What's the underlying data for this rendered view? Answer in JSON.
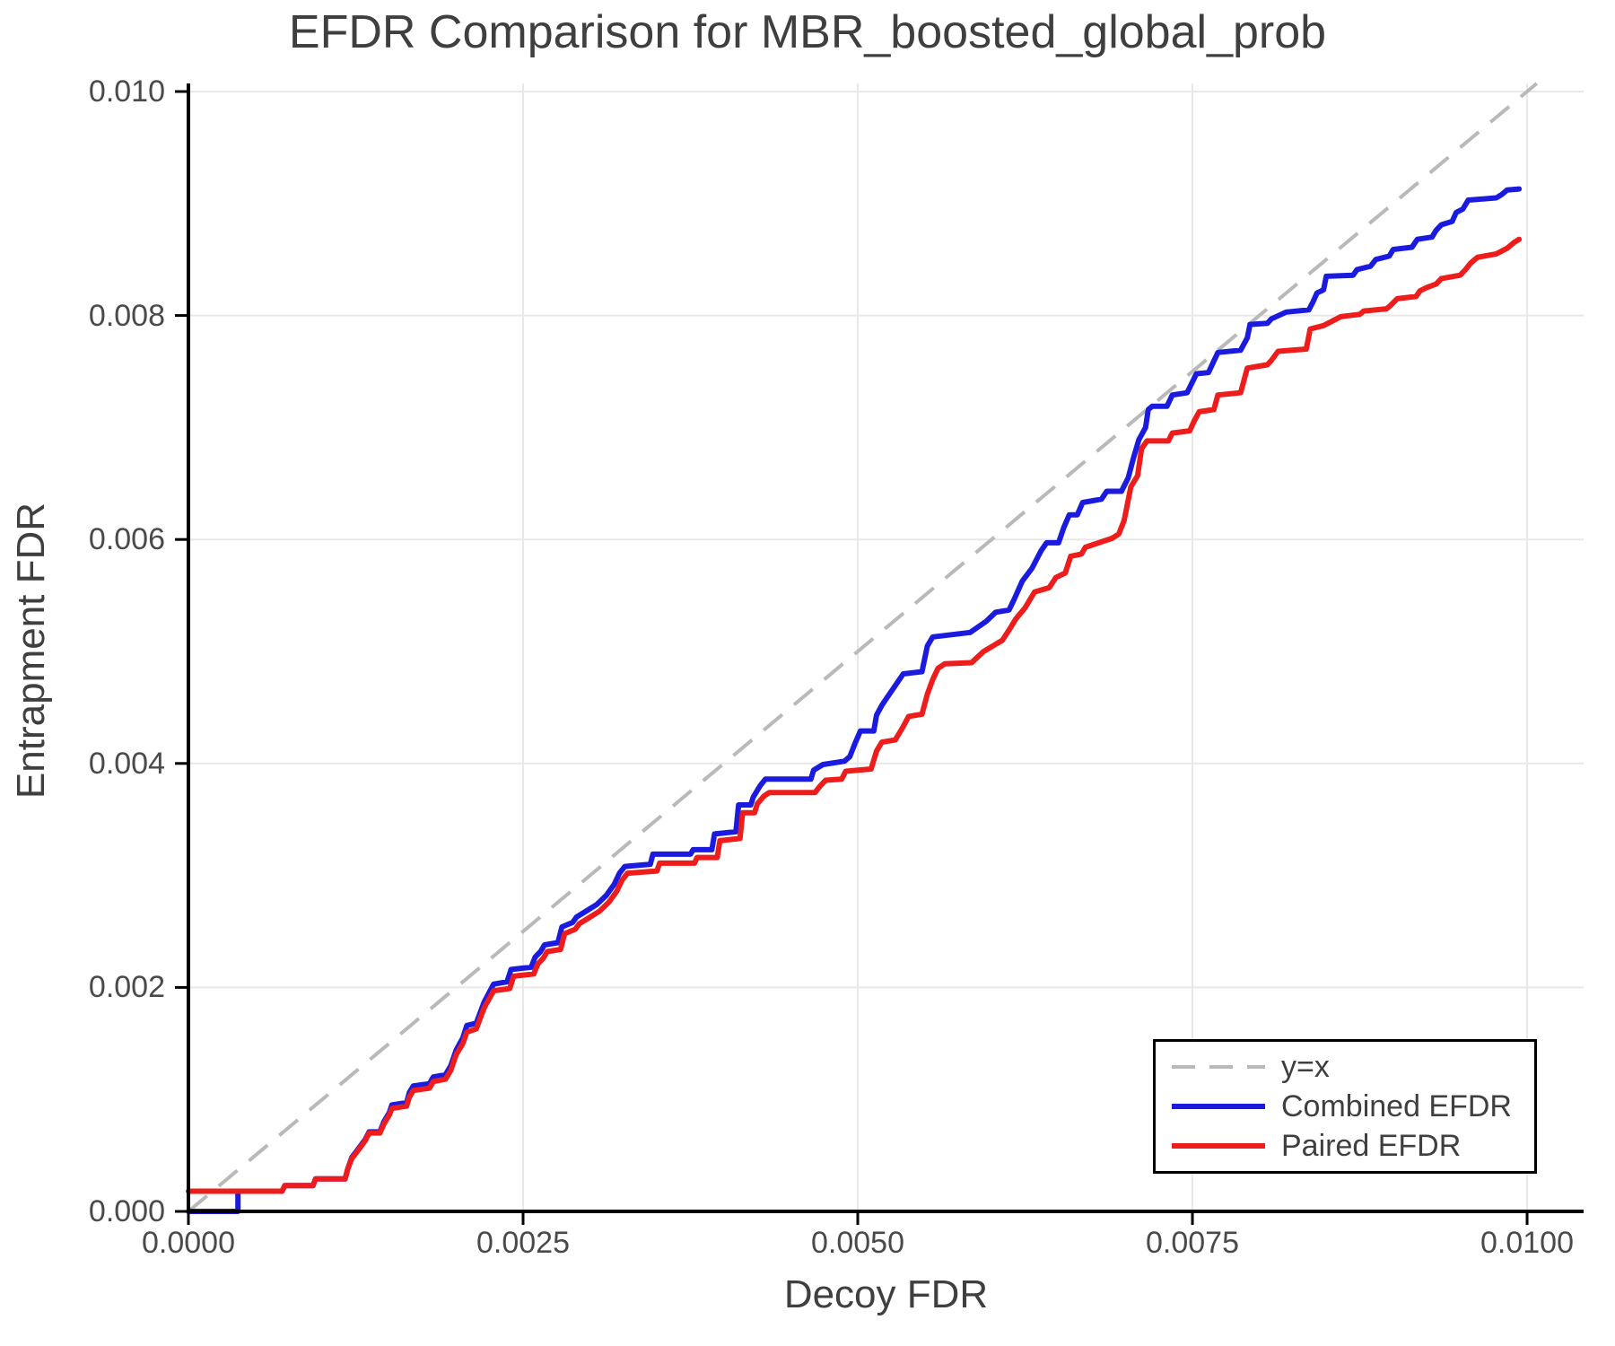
{
  "chart_data": {
    "type": "line",
    "title": "EFDR Comparison for MBR_boosted_global_prob",
    "xlabel": "Decoy FDR",
    "ylabel": "Entrapment FDR",
    "xlim": [
      0,
      0.010422
    ],
    "ylim": [
      0,
      0.010072
    ],
    "grid": true,
    "grid_color": "#e8e8e8",
    "spine_color": "#000000",
    "legend_position": "lower right",
    "x_ticks": [
      0,
      0.0025,
      0.005,
      0.0075,
      0.01
    ],
    "x_tick_labels": [
      "0.0000",
      "0.0025",
      "0.0050",
      "0.0075",
      "0.0100"
    ],
    "y_ticks": [
      0,
      0.002,
      0.004,
      0.006,
      0.008,
      0.01
    ],
    "y_tick_labels": [
      "0.000",
      "0.002",
      "0.004",
      "0.006",
      "0.008",
      "0.010"
    ],
    "reference_line": {
      "label": "y=x",
      "color": "#b9b9b9",
      "dash": true,
      "from": [
        0,
        0
      ],
      "to": [
        0.010072,
        0.010072
      ]
    },
    "series": [
      {
        "name": "Combined EFDR",
        "color": "#1b1be0",
        "points": [
          [
            0,
            0
          ],
          [
            0.00037,
            0
          ],
          [
            0.00037,
            0.00018
          ],
          [
            0.0007,
            0.00018
          ],
          [
            0.00072,
            0.00023
          ],
          [
            0.00093,
            0.00023
          ],
          [
            0.00095,
            0.00029
          ],
          [
            0.00117,
            0.00029
          ],
          [
            0.00119,
            0.00038
          ],
          [
            0.00122,
            0.00048
          ],
          [
            0.00127,
            0.00056
          ],
          [
            0.00132,
            0.00064
          ],
          [
            0.00135,
            0.00071
          ],
          [
            0.00143,
            0.00071
          ],
          [
            0.00146,
            0.0008
          ],
          [
            0.0015,
            0.00088
          ],
          [
            0.00152,
            0.00095
          ],
          [
            0.00163,
            0.00097
          ],
          [
            0.00165,
            0.00106
          ],
          [
            0.00168,
            0.00112
          ],
          [
            0.0018,
            0.00114
          ],
          [
            0.00183,
            0.0012
          ],
          [
            0.00192,
            0.00122
          ],
          [
            0.00196,
            0.0013
          ],
          [
            0.002,
            0.00144
          ],
          [
            0.00205,
            0.00155
          ],
          [
            0.00208,
            0.00166
          ],
          [
            0.00215,
            0.00168
          ],
          [
            0.00221,
            0.00187
          ],
          [
            0.00228,
            0.00203
          ],
          [
            0.00238,
            0.00205
          ],
          [
            0.00241,
            0.00216
          ],
          [
            0.00256,
            0.00218
          ],
          [
            0.00259,
            0.00227
          ],
          [
            0.00263,
            0.00232
          ],
          [
            0.00266,
            0.00238
          ],
          [
            0.00276,
            0.0024
          ],
          [
            0.00279,
            0.00254
          ],
          [
            0.00287,
            0.00258
          ],
          [
            0.0029,
            0.00263
          ],
          [
            0.00297,
            0.00268
          ],
          [
            0.00305,
            0.00274
          ],
          [
            0.00312,
            0.00282
          ],
          [
            0.00318,
            0.00292
          ],
          [
            0.00322,
            0.00302
          ],
          [
            0.00326,
            0.00308
          ],
          [
            0.00345,
            0.0031
          ],
          [
            0.00347,
            0.00319
          ],
          [
            0.00375,
            0.00319
          ],
          [
            0.00377,
            0.00323
          ],
          [
            0.00391,
            0.00323
          ],
          [
            0.00393,
            0.00337
          ],
          [
            0.00409,
            0.00339
          ],
          [
            0.00411,
            0.00363
          ],
          [
            0.0042,
            0.00363
          ],
          [
            0.00422,
            0.0037
          ],
          [
            0.00427,
            0.0038
          ],
          [
            0.00431,
            0.00386
          ],
          [
            0.00465,
            0.00386
          ],
          [
            0.00467,
            0.00394
          ],
          [
            0.00474,
            0.00399
          ],
          [
            0.0049,
            0.00402
          ],
          [
            0.00494,
            0.00406
          ],
          [
            0.00498,
            0.00418
          ],
          [
            0.00502,
            0.00429
          ],
          [
            0.00512,
            0.00429
          ],
          [
            0.00514,
            0.00443
          ],
          [
            0.00518,
            0.00452
          ],
          [
            0.00522,
            0.00459
          ],
          [
            0.0053,
            0.00473
          ],
          [
            0.00534,
            0.0048
          ],
          [
            0.00548,
            0.00482
          ],
          [
            0.00552,
            0.00505
          ],
          [
            0.00556,
            0.00513
          ],
          [
            0.0057,
            0.00515
          ],
          [
            0.00584,
            0.00517
          ],
          [
            0.00596,
            0.00527
          ],
          [
            0.00603,
            0.00535
          ],
          [
            0.00613,
            0.00537
          ],
          [
            0.00617,
            0.00547
          ],
          [
            0.00623,
            0.00563
          ],
          [
            0.0063,
            0.00574
          ],
          [
            0.00637,
            0.0059
          ],
          [
            0.00641,
            0.00597
          ],
          [
            0.0065,
            0.00597
          ],
          [
            0.00654,
            0.00611
          ],
          [
            0.00658,
            0.00622
          ],
          [
            0.00664,
            0.00622
          ],
          [
            0.00668,
            0.00633
          ],
          [
            0.00682,
            0.00636
          ],
          [
            0.00686,
            0.00643
          ],
          [
            0.00697,
            0.00643
          ],
          [
            0.00702,
            0.00655
          ],
          [
            0.00706,
            0.00673
          ],
          [
            0.0071,
            0.00689
          ],
          [
            0.00715,
            0.007
          ],
          [
            0.00717,
            0.00716
          ],
          [
            0.0072,
            0.00719
          ],
          [
            0.00731,
            0.00719
          ],
          [
            0.00735,
            0.00729
          ],
          [
            0.00746,
            0.00731
          ],
          [
            0.00753,
            0.00748
          ],
          [
            0.00762,
            0.00749
          ],
          [
            0.00769,
            0.00767
          ],
          [
            0.00786,
            0.00769
          ],
          [
            0.00791,
            0.0078
          ],
          [
            0.00793,
            0.00792
          ],
          [
            0.00806,
            0.00793
          ],
          [
            0.00809,
            0.00797
          ],
          [
            0.0082,
            0.00803
          ],
          [
            0.00837,
            0.00805
          ],
          [
            0.0084,
            0.00812
          ],
          [
            0.00843,
            0.0082
          ],
          [
            0.00848,
            0.00823
          ],
          [
            0.0085,
            0.00835
          ],
          [
            0.0087,
            0.00836
          ],
          [
            0.00873,
            0.00841
          ],
          [
            0.00883,
            0.00844
          ],
          [
            0.00887,
            0.0085
          ],
          [
            0.00897,
            0.00853
          ],
          [
            0.009,
            0.00859
          ],
          [
            0.00914,
            0.00861
          ],
          [
            0.00918,
            0.00868
          ],
          [
            0.00929,
            0.0087
          ],
          [
            0.00932,
            0.00876
          ],
          [
            0.00936,
            0.00881
          ],
          [
            0.00944,
            0.00884
          ],
          [
            0.00947,
            0.00892
          ],
          [
            0.00952,
            0.00895
          ],
          [
            0.00956,
            0.00903
          ],
          [
            0.00977,
            0.00905
          ],
          [
            0.00981,
            0.00908
          ],
          [
            0.00985,
            0.00912
          ],
          [
            0.00994,
            0.00913
          ]
        ]
      },
      {
        "name": "Paired EFDR",
        "color": "#ef1c1c",
        "points": [
          [
            0,
            0.00018
          ],
          [
            0.0007,
            0.00018
          ],
          [
            0.00072,
            0.00023
          ],
          [
            0.00093,
            0.00023
          ],
          [
            0.00095,
            0.00029
          ],
          [
            0.00117,
            0.00029
          ],
          [
            0.00119,
            0.00038
          ],
          [
            0.00122,
            0.00047
          ],
          [
            0.00127,
            0.00055
          ],
          [
            0.00132,
            0.00063
          ],
          [
            0.00135,
            0.0007
          ],
          [
            0.00143,
            0.0007
          ],
          [
            0.00146,
            0.00078
          ],
          [
            0.0015,
            0.00086
          ],
          [
            0.00152,
            0.00092
          ],
          [
            0.00163,
            0.00094
          ],
          [
            0.00165,
            0.00102
          ],
          [
            0.00168,
            0.00108
          ],
          [
            0.0018,
            0.0011
          ],
          [
            0.00183,
            0.00116
          ],
          [
            0.00192,
            0.00118
          ],
          [
            0.00196,
            0.00126
          ],
          [
            0.002,
            0.0014
          ],
          [
            0.00205,
            0.0015
          ],
          [
            0.00208,
            0.0016
          ],
          [
            0.00215,
            0.00163
          ],
          [
            0.00221,
            0.00182
          ],
          [
            0.00228,
            0.00197
          ],
          [
            0.0024,
            0.00199
          ],
          [
            0.00243,
            0.0021
          ],
          [
            0.00258,
            0.00212
          ],
          [
            0.00261,
            0.00221
          ],
          [
            0.00265,
            0.00226
          ],
          [
            0.00268,
            0.00232
          ],
          [
            0.00278,
            0.00234
          ],
          [
            0.00281,
            0.00248
          ],
          [
            0.00289,
            0.00252
          ],
          [
            0.00292,
            0.00257
          ],
          [
            0.00299,
            0.00262
          ],
          [
            0.00307,
            0.00268
          ],
          [
            0.00314,
            0.00276
          ],
          [
            0.0032,
            0.00286
          ],
          [
            0.00324,
            0.00296
          ],
          [
            0.00328,
            0.00302
          ],
          [
            0.0035,
            0.00304
          ],
          [
            0.00352,
            0.00311
          ],
          [
            0.00378,
            0.00311
          ],
          [
            0.0038,
            0.00316
          ],
          [
            0.00395,
            0.00316
          ],
          [
            0.00397,
            0.00331
          ],
          [
            0.00412,
            0.00333
          ],
          [
            0.00414,
            0.00356
          ],
          [
            0.00423,
            0.00356
          ],
          [
            0.00425,
            0.00364
          ],
          [
            0.0043,
            0.00371
          ],
          [
            0.00434,
            0.00374
          ],
          [
            0.00468,
            0.00374
          ],
          [
            0.00472,
            0.0038
          ],
          [
            0.00476,
            0.00385
          ],
          [
            0.00488,
            0.00386
          ],
          [
            0.00491,
            0.00393
          ],
          [
            0.0051,
            0.00395
          ],
          [
            0.00514,
            0.00411
          ],
          [
            0.00518,
            0.00419
          ],
          [
            0.00528,
            0.00421
          ],
          [
            0.00534,
            0.00433
          ],
          [
            0.00538,
            0.00442
          ],
          [
            0.00548,
            0.00444
          ],
          [
            0.00552,
            0.00462
          ],
          [
            0.00556,
            0.00475
          ],
          [
            0.0056,
            0.00485
          ],
          [
            0.00565,
            0.00489
          ],
          [
            0.00585,
            0.0049
          ],
          [
            0.00594,
            0.005
          ],
          [
            0.00601,
            0.00505
          ],
          [
            0.00608,
            0.0051
          ],
          [
            0.00614,
            0.00521
          ],
          [
            0.00618,
            0.00529
          ],
          [
            0.00625,
            0.00539
          ],
          [
            0.00632,
            0.00553
          ],
          [
            0.00643,
            0.00557
          ],
          [
            0.00648,
            0.00566
          ],
          [
            0.00655,
            0.0057
          ],
          [
            0.00659,
            0.00585
          ],
          [
            0.00667,
            0.00587
          ],
          [
            0.0067,
            0.00593
          ],
          [
            0.0068,
            0.00597
          ],
          [
            0.0069,
            0.00601
          ],
          [
            0.00695,
            0.00605
          ],
          [
            0.00699,
            0.00617
          ],
          [
            0.00704,
            0.00647
          ],
          [
            0.00709,
            0.00657
          ],
          [
            0.00712,
            0.00681
          ],
          [
            0.00716,
            0.00688
          ],
          [
            0.00732,
            0.00688
          ],
          [
            0.00735,
            0.00695
          ],
          [
            0.00748,
            0.00697
          ],
          [
            0.00751,
            0.00705
          ],
          [
            0.00755,
            0.00714
          ],
          [
            0.00766,
            0.00716
          ],
          [
            0.00769,
            0.00729
          ],
          [
            0.00786,
            0.00731
          ],
          [
            0.00791,
            0.00753
          ],
          [
            0.00806,
            0.00756
          ],
          [
            0.00809,
            0.0076
          ],
          [
            0.00814,
            0.00768
          ],
          [
            0.00835,
            0.0077
          ],
          [
            0.00838,
            0.00788
          ],
          [
            0.00848,
            0.00791
          ],
          [
            0.00861,
            0.00799
          ],
          [
            0.00875,
            0.00801
          ],
          [
            0.00878,
            0.00804
          ],
          [
            0.00895,
            0.00806
          ],
          [
            0.00898,
            0.00809
          ],
          [
            0.00903,
            0.00815
          ],
          [
            0.00917,
            0.00817
          ],
          [
            0.0092,
            0.00822
          ],
          [
            0.00925,
            0.00825
          ],
          [
            0.00932,
            0.00828
          ],
          [
            0.00936,
            0.00833
          ],
          [
            0.0095,
            0.00836
          ],
          [
            0.00954,
            0.00841
          ],
          [
            0.00958,
            0.00847
          ],
          [
            0.00963,
            0.00852
          ],
          [
            0.00977,
            0.00855
          ],
          [
            0.00985,
            0.0086
          ],
          [
            0.0099,
            0.00865
          ],
          [
            0.00994,
            0.00868
          ]
        ]
      }
    ]
  }
}
